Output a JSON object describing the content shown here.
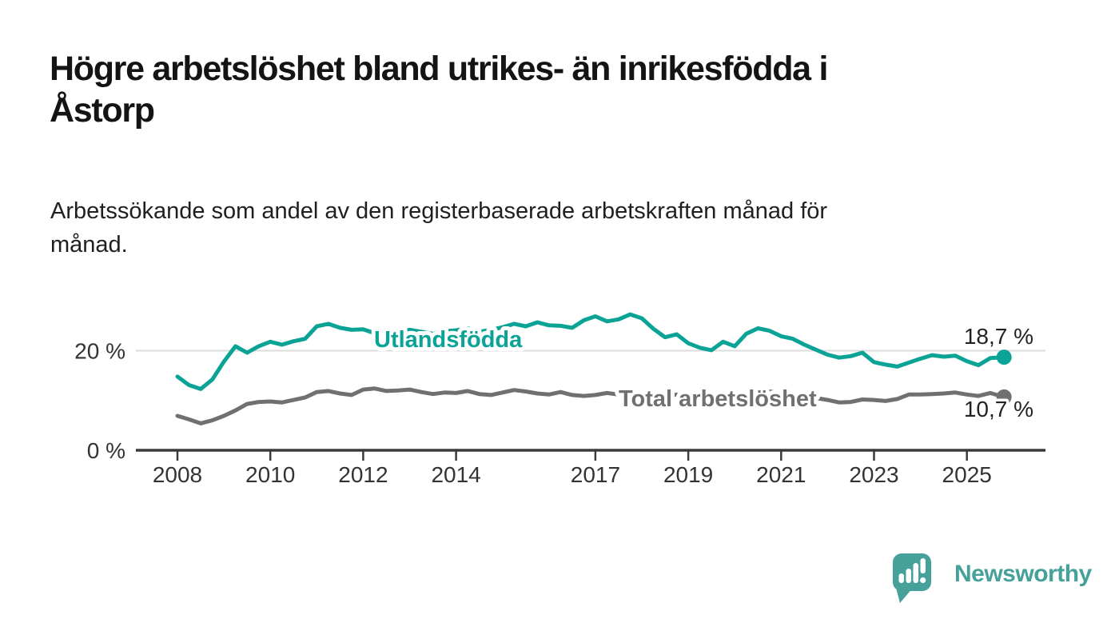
{
  "title": {
    "lines": [
      "Högre arbetslöshet bland utrikes- än inrikesfödda i",
      "Åstorp"
    ]
  },
  "subtitle": {
    "lines": [
      "Arbetssökande som andel av den registerbaserade arbetskraften månad för",
      "månad."
    ]
  },
  "branding": {
    "name": "Newsworthy",
    "logo_icon": "bar-chart-speech-bubble-icon",
    "color": "#46a19a"
  },
  "chart_data": {
    "type": "line",
    "title": "Högre arbetslöshet bland utrikes- än inrikesfödda i Åstorp",
    "subtitle": "Arbetssökande som andel av den registerbaserade arbetskraften månad för månad.",
    "unit": "%",
    "grid": "single horizontal gridline at 20 %",
    "legend": "inline labels next to lines",
    "x_axis": {
      "range": [
        2008,
        2025.8
      ],
      "tick_years": [
        2008,
        2010,
        2012,
        2014,
        2017,
        2019,
        2021,
        2023,
        2025
      ],
      "tick_labels": [
        "2008",
        "2010",
        "2012",
        "2014",
        "2017",
        "2019",
        "2021",
        "2023",
        "2025"
      ]
    },
    "y_axis": {
      "range": [
        0,
        28
      ],
      "tick_values": [
        0,
        20
      ],
      "tick_labels": [
        "0 %",
        "20 %"
      ]
    },
    "x": [
      2008.0,
      2008.25,
      2008.5,
      2008.75,
      2009.0,
      2009.25,
      2009.5,
      2009.75,
      2010.0,
      2010.25,
      2010.5,
      2010.75,
      2011.0,
      2011.25,
      2011.5,
      2011.75,
      2012.0,
      2012.25,
      2012.5,
      2012.75,
      2013.0,
      2013.25,
      2013.5,
      2013.75,
      2014.0,
      2014.25,
      2014.5,
      2014.75,
      2015.0,
      2015.25,
      2015.5,
      2015.75,
      2016.0,
      2016.25,
      2016.5,
      2016.75,
      2017.0,
      2017.25,
      2017.5,
      2017.75,
      2018.0,
      2018.25,
      2018.5,
      2018.75,
      2019.0,
      2019.25,
      2019.5,
      2019.75,
      2020.0,
      2020.25,
      2020.5,
      2020.75,
      2021.0,
      2021.25,
      2021.5,
      2021.75,
      2022.0,
      2022.25,
      2022.5,
      2022.75,
      2023.0,
      2023.25,
      2023.5,
      2023.75,
      2024.0,
      2024.25,
      2024.5,
      2024.75,
      2025.0,
      2025.25,
      2025.5,
      2025.8
    ],
    "series": [
      {
        "name": "Utlandsfödda",
        "color": "#0aa396",
        "end_label": "18,7 %",
        "end_value": 18.7,
        "values": [
          14.8,
          13.1,
          12.3,
          14.2,
          17.8,
          20.9,
          19.6,
          20.9,
          21.8,
          21.2,
          21.9,
          22.4,
          24.9,
          25.4,
          24.6,
          24.2,
          24.3,
          23.5,
          23.9,
          23.6,
          24.2,
          23.8,
          23.4,
          23.9,
          24.1,
          24.5,
          23.8,
          24.2,
          24.7,
          25.4,
          24.9,
          25.7,
          25.1,
          25.0,
          24.6,
          26.1,
          26.9,
          25.9,
          26.3,
          27.3,
          26.5,
          24.4,
          22.7,
          23.3,
          21.5,
          20.6,
          20.1,
          21.8,
          20.9,
          23.4,
          24.5,
          24.0,
          22.9,
          22.4,
          21.2,
          20.2,
          19.2,
          18.6,
          18.9,
          19.6,
          17.7,
          17.2,
          16.8,
          17.6,
          18.4,
          19.1,
          18.8,
          19.0,
          17.9,
          17.1,
          18.5,
          18.7
        ]
      },
      {
        "name": "Total arbetslöshet",
        "color": "#707070",
        "end_label": "10,7 %",
        "end_value": 10.7,
        "values": [
          6.9,
          6.2,
          5.4,
          6.0,
          6.9,
          8.0,
          9.3,
          9.7,
          9.8,
          9.6,
          10.1,
          10.6,
          11.7,
          11.9,
          11.4,
          11.1,
          12.2,
          12.4,
          11.9,
          12.0,
          12.2,
          11.7,
          11.3,
          11.6,
          11.5,
          11.9,
          11.3,
          11.1,
          11.6,
          12.1,
          11.8,
          11.4,
          11.2,
          11.7,
          11.1,
          10.9,
          11.1,
          11.5,
          11.2,
          11.6,
          11.3,
          11.0,
          10.8,
          11.2,
          10.8,
          10.6,
          10.5,
          10.9,
          10.7,
          11.6,
          12.0,
          11.8,
          11.4,
          11.2,
          10.9,
          10.5,
          10.1,
          9.6,
          9.7,
          10.2,
          10.1,
          9.9,
          10.3,
          11.2,
          11.2,
          11.3,
          11.4,
          11.6,
          11.2,
          10.9,
          11.5,
          10.7
        ]
      }
    ]
  }
}
